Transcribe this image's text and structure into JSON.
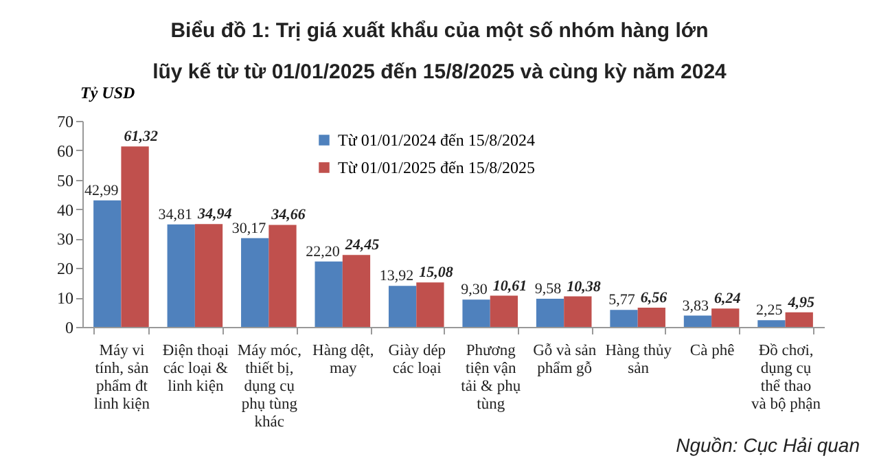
{
  "chart_data": {
    "type": "bar",
    "title": "Biểu đồ 1: Trị giá xuất khẩu của một số nhóm hàng lớn",
    "subtitle": "lũy kế từ từ 01/01/2025 đến 15/8/2025 và cùng kỳ năm 2024",
    "ylabel": "Tỷ USD",
    "categories": [
      "Máy vi tính, sản phẩm đt linh kiện",
      "Điện thoại các loại & linh kiện",
      "Máy móc, thiết bị, dụng cụ phụ tùng khác",
      "Hàng dệt, may",
      "Giày dép các loại",
      "Phương tiện vận tải & phụ tùng",
      "Gỗ và sản phẩm gỗ",
      "Hàng thủy sản",
      "Cà phê",
      "Đồ chơi, dụng cụ thể thao và bộ phận"
    ],
    "series": [
      {
        "name": "Từ 01/01/2024 đến 15/8/2024",
        "color": "#4f81bd",
        "values": [
          42.99,
          34.81,
          30.17,
          22.2,
          13.92,
          9.3,
          9.58,
          5.77,
          3.83,
          2.25
        ],
        "value_labels": [
          "42,99",
          "34,81",
          "30,17",
          "22,20",
          "13,92",
          "9,30",
          "9,58",
          "5,77",
          "3,83",
          "2,25"
        ]
      },
      {
        "name": "Từ 01/01/2025 đến 15/8/2025",
        "color": "#c0504d",
        "values": [
          61.32,
          34.94,
          34.66,
          24.45,
          15.08,
          10.61,
          10.38,
          6.56,
          6.24,
          4.95
        ],
        "value_labels": [
          "61,32",
          "34,94",
          "34,66",
          "24,45",
          "15,08",
          "10,61",
          "10,38",
          "6,56",
          "6,24",
          "4,95"
        ]
      }
    ],
    "ylim": [
      0,
      70
    ],
    "yticks": [
      0,
      10,
      20,
      30,
      40,
      50,
      60,
      70
    ],
    "grid": false,
    "legend": "top",
    "annotations": [
      "Nguồn: Cục Hải quan"
    ]
  }
}
